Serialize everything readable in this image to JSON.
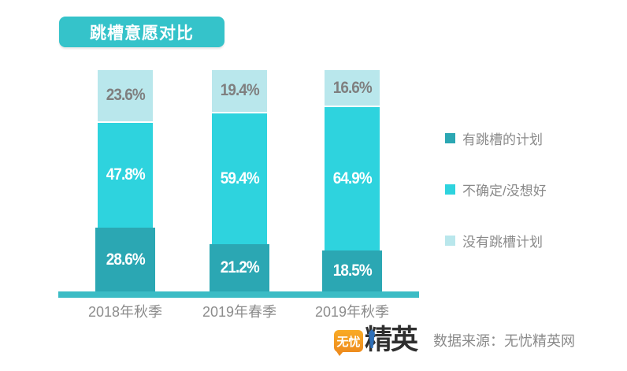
{
  "title": {
    "label": "跳槽意愿对比"
  },
  "chart_data": {
    "type": "bar",
    "stacked": true,
    "title": "跳槽意愿对比",
    "categories": [
      "2018年秋季",
      "2019年春季",
      "2019年秋季"
    ],
    "series": [
      {
        "name": "有跳槽的计划",
        "color": "#2ba7b3",
        "label_color": "#ffffff",
        "values": [
          28.6,
          21.2,
          18.5
        ]
      },
      {
        "name": "不确定/没想好",
        "color": "#2ed3de",
        "label_color": "#ffffff",
        "values": [
          47.8,
          59.4,
          64.9
        ]
      },
      {
        "name": "没有跳槽计划",
        "color": "#b9e7ec",
        "label_color": "#7f7f7f",
        "values": [
          23.6,
          19.4,
          16.6
        ]
      }
    ],
    "value_suffix": "%",
    "ylim": [
      0,
      100
    ],
    "grid": false,
    "legend_position": "right",
    "xlabel": "",
    "ylabel": ""
  },
  "footer": {
    "logo_bubble_text": "无忧",
    "logo_brand_text": "精英",
    "source_label": "数据来源：无忧精英网"
  },
  "colors": {
    "badge": "#35c3ca",
    "axis_line": "#3bbcc5",
    "text_gray": "#8a8a8a"
  }
}
